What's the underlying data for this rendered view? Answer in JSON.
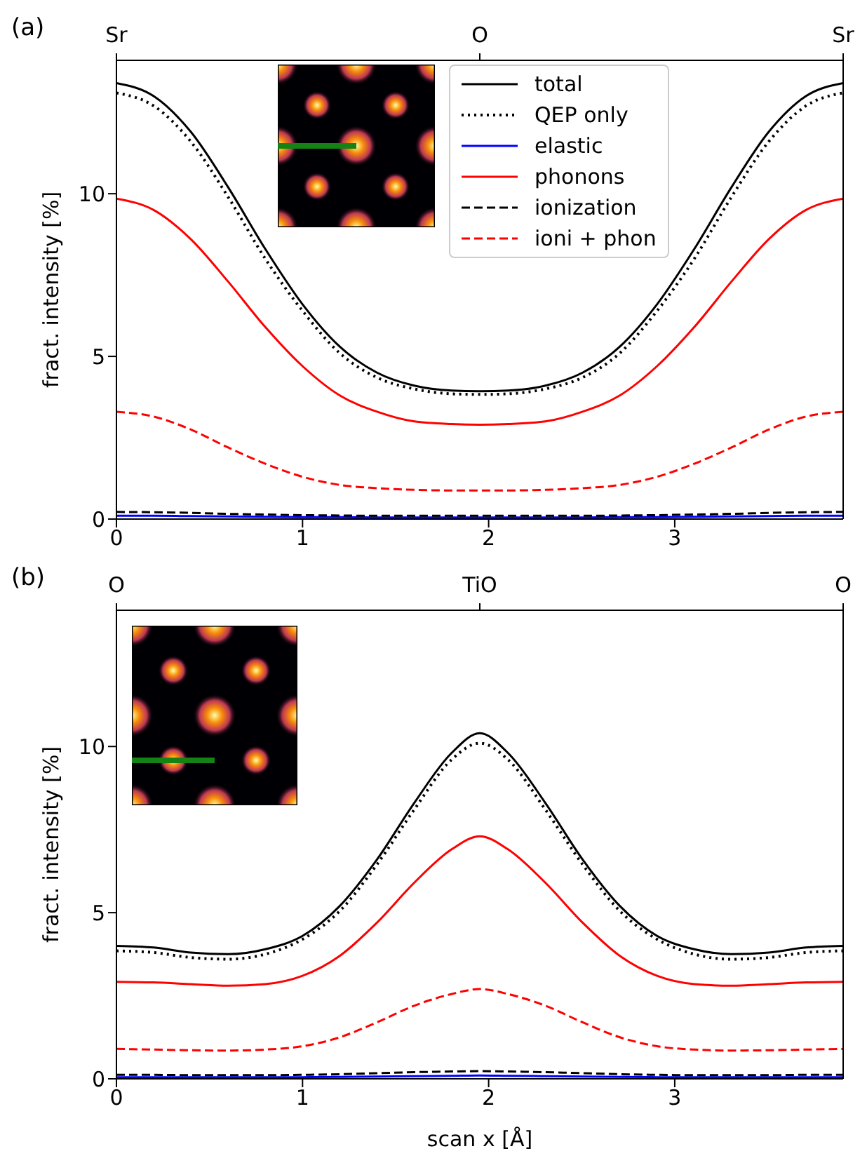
{
  "chart_data": [
    {
      "type": "line",
      "title": "(a)",
      "ylabel": "fract. intensity [%]",
      "x": [
        0,
        0.2,
        0.4,
        0.6,
        0.8,
        1.0,
        1.2,
        1.4,
        1.6,
        1.8,
        1.9525,
        2.105,
        2.305,
        2.505,
        2.705,
        2.905,
        3.105,
        3.305,
        3.505,
        3.705,
        3.905
      ],
      "series": [
        {
          "name": "total",
          "color": "#000000",
          "line_style": "solid",
          "values": [
            13.4,
            13.0,
            11.9,
            10.2,
            8.3,
            6.6,
            5.3,
            4.5,
            4.1,
            3.95,
            3.93,
            3.95,
            4.1,
            4.5,
            5.3,
            6.6,
            8.3,
            10.2,
            11.9,
            13.0,
            13.4
          ]
        },
        {
          "name": "QEP only",
          "color": "#000000",
          "line_style": "dotted",
          "values": [
            13.1,
            12.7,
            11.6,
            9.9,
            8.0,
            6.4,
            5.1,
            4.35,
            4.0,
            3.85,
            3.83,
            3.85,
            4.0,
            4.35,
            5.1,
            6.4,
            8.0,
            9.9,
            11.6,
            12.7,
            13.1
          ]
        },
        {
          "name": "elastic",
          "color": "#0000ff",
          "line_style": "solid",
          "values": [
            0.1,
            0.1,
            0.09,
            0.08,
            0.07,
            0.06,
            0.06,
            0.05,
            0.05,
            0.05,
            0.05,
            0.05,
            0.05,
            0.05,
            0.06,
            0.06,
            0.07,
            0.08,
            0.09,
            0.1,
            0.1
          ]
        },
        {
          "name": "phonons",
          "color": "#ff0000",
          "line_style": "solid",
          "values": [
            9.85,
            9.5,
            8.6,
            7.3,
            5.9,
            4.7,
            3.8,
            3.3,
            3.0,
            2.92,
            2.9,
            2.92,
            3.0,
            3.3,
            3.8,
            4.7,
            5.9,
            7.3,
            8.6,
            9.5,
            9.85
          ]
        },
        {
          "name": "ionization",
          "color": "#000000",
          "line_style": "dashed",
          "values": [
            0.22,
            0.21,
            0.19,
            0.16,
            0.14,
            0.12,
            0.11,
            0.1,
            0.1,
            0.1,
            0.1,
            0.1,
            0.1,
            0.1,
            0.11,
            0.12,
            0.14,
            0.16,
            0.19,
            0.21,
            0.22
          ]
        },
        {
          "name": "ioni + phon",
          "color": "#ff0000",
          "line_style": "dashed",
          "values": [
            3.3,
            3.15,
            2.75,
            2.2,
            1.7,
            1.3,
            1.05,
            0.95,
            0.9,
            0.88,
            0.88,
            0.88,
            0.9,
            0.95,
            1.05,
            1.3,
            1.7,
            2.2,
            2.75,
            3.15,
            3.3
          ]
        }
      ],
      "xlim": [
        0,
        3.905
      ],
      "xticks": [
        0,
        1,
        2,
        3
      ],
      "ylim": [
        0,
        14.1
      ],
      "yticks": [
        0,
        5,
        10
      ],
      "annotations": [
        "Sr",
        "O",
        "Sr"
      ],
      "legend": "top right",
      "grid": false
    },
    {
      "type": "line",
      "title": "(b)",
      "xlabel": "scan x [Å]",
      "ylabel": "fract. intensity [%]",
      "x": [
        0,
        0.2,
        0.4,
        0.6,
        0.8,
        1.0,
        1.2,
        1.4,
        1.6,
        1.8,
        1.9525,
        2.105,
        2.305,
        2.505,
        2.705,
        2.905,
        3.105,
        3.305,
        3.505,
        3.705,
        3.905
      ],
      "series": [
        {
          "color": "#000000",
          "line_style": "solid",
          "values": [
            4.0,
            3.95,
            3.8,
            3.75,
            3.9,
            4.3,
            5.2,
            6.6,
            8.3,
            9.8,
            10.4,
            9.8,
            8.3,
            6.6,
            5.2,
            4.3,
            3.9,
            3.75,
            3.8,
            3.95,
            4.0
          ]
        },
        {
          "color": "#000000",
          "line_style": "dotted",
          "values": [
            3.85,
            3.8,
            3.65,
            3.6,
            3.75,
            4.2,
            5.05,
            6.45,
            8.1,
            9.6,
            10.1,
            9.6,
            8.1,
            6.45,
            5.05,
            4.2,
            3.75,
            3.6,
            3.65,
            3.8,
            3.85
          ]
        },
        {
          "color": "#0000ff",
          "line_style": "solid",
          "values": [
            0.05,
            0.05,
            0.05,
            0.05,
            0.05,
            0.05,
            0.06,
            0.07,
            0.08,
            0.09,
            0.1,
            0.09,
            0.08,
            0.07,
            0.06,
            0.05,
            0.05,
            0.05,
            0.05,
            0.05,
            0.05
          ]
        },
        {
          "color": "#ff0000",
          "line_style": "solid",
          "values": [
            2.92,
            2.9,
            2.85,
            2.8,
            2.85,
            3.1,
            3.7,
            4.7,
            5.9,
            6.9,
            7.3,
            6.9,
            5.9,
            4.7,
            3.7,
            3.1,
            2.85,
            2.8,
            2.85,
            2.9,
            2.92
          ]
        },
        {
          "color": "#000000",
          "line_style": "dashed",
          "values": [
            0.12,
            0.12,
            0.11,
            0.11,
            0.11,
            0.12,
            0.14,
            0.17,
            0.2,
            0.22,
            0.23,
            0.22,
            0.2,
            0.17,
            0.14,
            0.12,
            0.11,
            0.11,
            0.11,
            0.12,
            0.12
          ]
        },
        {
          "color": "#ff0000",
          "line_style": "dashed",
          "values": [
            0.9,
            0.88,
            0.86,
            0.85,
            0.88,
            0.98,
            1.25,
            1.7,
            2.2,
            2.55,
            2.7,
            2.55,
            2.2,
            1.7,
            1.25,
            0.98,
            0.88,
            0.85,
            0.86,
            0.88,
            0.9
          ]
        }
      ],
      "xlim": [
        0,
        3.905
      ],
      "xticks": [
        0,
        1,
        2,
        3
      ],
      "ylim": [
        0,
        14.1
      ],
      "yticks": [
        0,
        5,
        10
      ],
      "annotations": [
        "O",
        "TiO",
        "O"
      ],
      "legend": false,
      "grid": false
    }
  ]
}
